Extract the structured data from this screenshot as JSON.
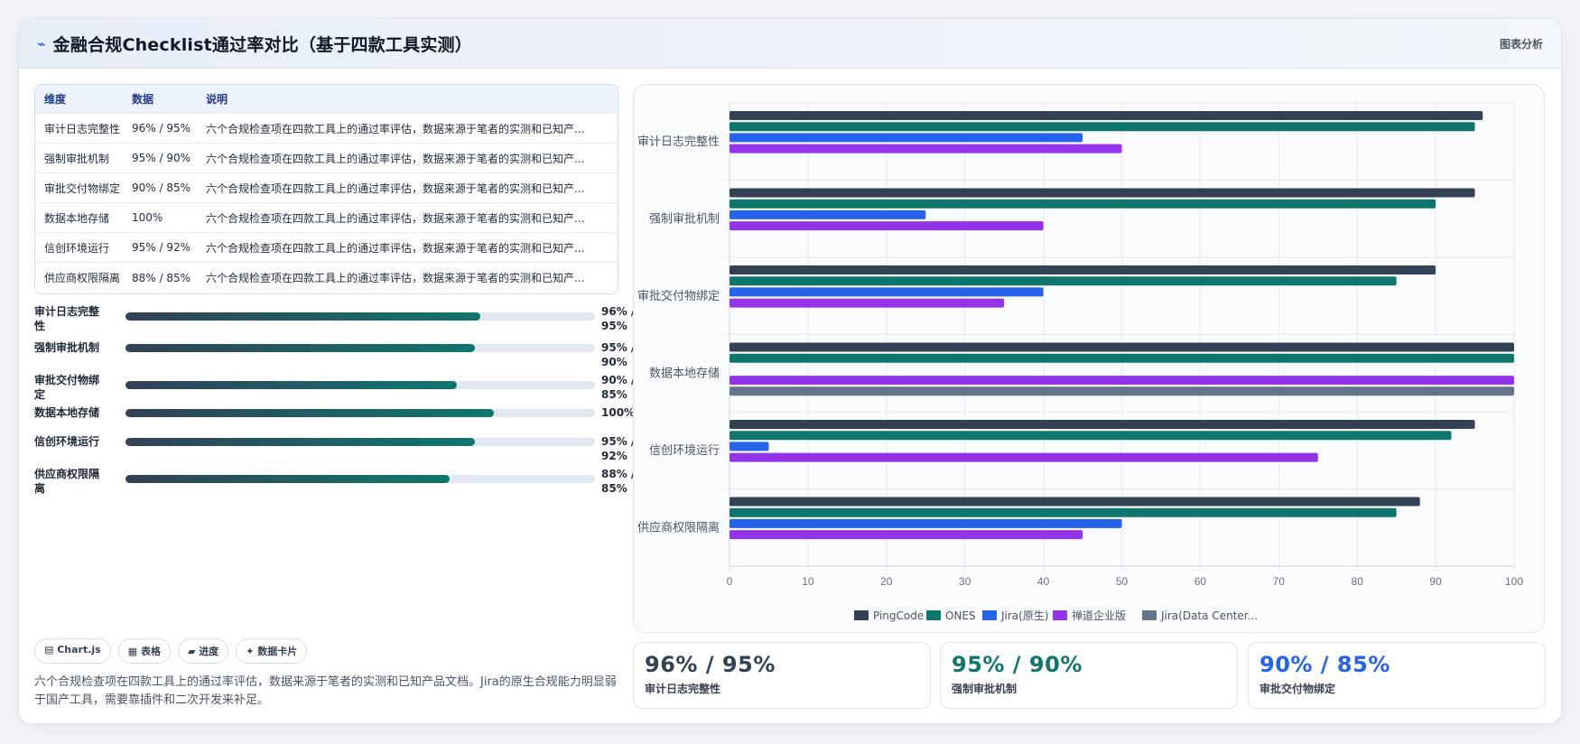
{
  "header": {
    "icon": "chart-line-icon",
    "title": "金融合规Checklist通过率对比（基于四款工具实测）",
    "action": "图表分析"
  },
  "table": {
    "columns": [
      "维度",
      "数据",
      "说明"
    ],
    "rows": [
      [
        "审计日志完整性",
        "96% / 95%",
        "六个合规检查项在四款工具上的通过率评估，数据来源于笔者的实测和已知产..."
      ],
      [
        "强制审批机制",
        "95% / 90%",
        "六个合规检查项在四款工具上的通过率评估，数据来源于笔者的实测和已知产..."
      ],
      [
        "审批交付物绑定",
        "90% / 85%",
        "六个合规检查项在四款工具上的通过率评估，数据来源于笔者的实测和已知产..."
      ],
      [
        "数据本地存储",
        "100%",
        "六个合规检查项在四款工具上的通过率评估，数据来源于笔者的实测和已知产..."
      ],
      [
        "信创环境运行",
        "95% / 92%",
        "六个合规检查项在四款工具上的通过率评估，数据来源于笔者的实测和已知产..."
      ],
      [
        "供应商权限隔离",
        "88% / 85%",
        "六个合规检查项在四款工具上的通过率评估，数据来源于笔者的实测和已知产..."
      ]
    ]
  },
  "progress": [
    {
      "label": "审计日志完整性",
      "value": "96% / 95%",
      "fraction": 0.755
    },
    {
      "label": "强制审批机制",
      "value": "95% / 90%",
      "fraction": 0.745
    },
    {
      "label": "审批交付物绑定",
      "value": "90% / 85%",
      "fraction": 0.705
    },
    {
      "label": "数据本地存储",
      "value": "100%",
      "fraction": 0.785
    },
    {
      "label": "信创环境运行",
      "value": "95% / 92%",
      "fraction": 0.745
    },
    {
      "label": "供应商权限隔离",
      "value": "88% / 85%",
      "fraction": 0.69
    }
  ],
  "tags": [
    "▤ Chart.js",
    "▦ 表格",
    "▰ 进度",
    "✦ 数据卡片"
  ],
  "description": "六个合规检查项在四款工具上的通过率评估，数据来源于笔者的实测和已知产品文档。Jira的原生合规能力明显弱于国产工具，需要靠插件和二次开发来补足。",
  "stats": [
    {
      "value": "96% / 95%",
      "label": "审计日志完整性",
      "color": "#334155"
    },
    {
      "value": "95% / 90%",
      "label": "强制审批机制",
      "color": "#0f766e"
    },
    {
      "value": "90% / 85%",
      "label": "审批交付物绑定",
      "color": "#2563eb"
    }
  ],
  "chart_data": {
    "type": "bar",
    "orientation": "horizontal",
    "categories": [
      "审计日志完整性",
      "强制审批机制",
      "审批交付物绑定",
      "数据本地存储",
      "信创环境运行",
      "供应商权限隔离"
    ],
    "series": [
      {
        "name": "PingCode",
        "color": "#334155",
        "values": [
          96,
          95,
          90,
          100,
          95,
          88
        ]
      },
      {
        "name": "ONES",
        "color": "#0f766e",
        "values": [
          95,
          90,
          85,
          100,
          92,
          85
        ]
      },
      {
        "name": "Jira(原生)",
        "color": "#2563eb",
        "values": [
          45,
          25,
          40,
          0,
          5,
          50
        ]
      },
      {
        "name": "禅道企业版",
        "color": "#9333ea",
        "values": [
          50,
          40,
          35,
          100,
          75,
          45
        ]
      },
      {
        "name": "Jira(Data Center...",
        "color": "#64748b",
        "values": [
          0,
          0,
          0,
          100,
          0,
          0
        ]
      }
    ],
    "xlim": [
      0,
      100
    ],
    "xticks": [
      0,
      10,
      20,
      30,
      40,
      50,
      60,
      70,
      80,
      90,
      100
    ],
    "grid": true,
    "legend": "bottom"
  }
}
